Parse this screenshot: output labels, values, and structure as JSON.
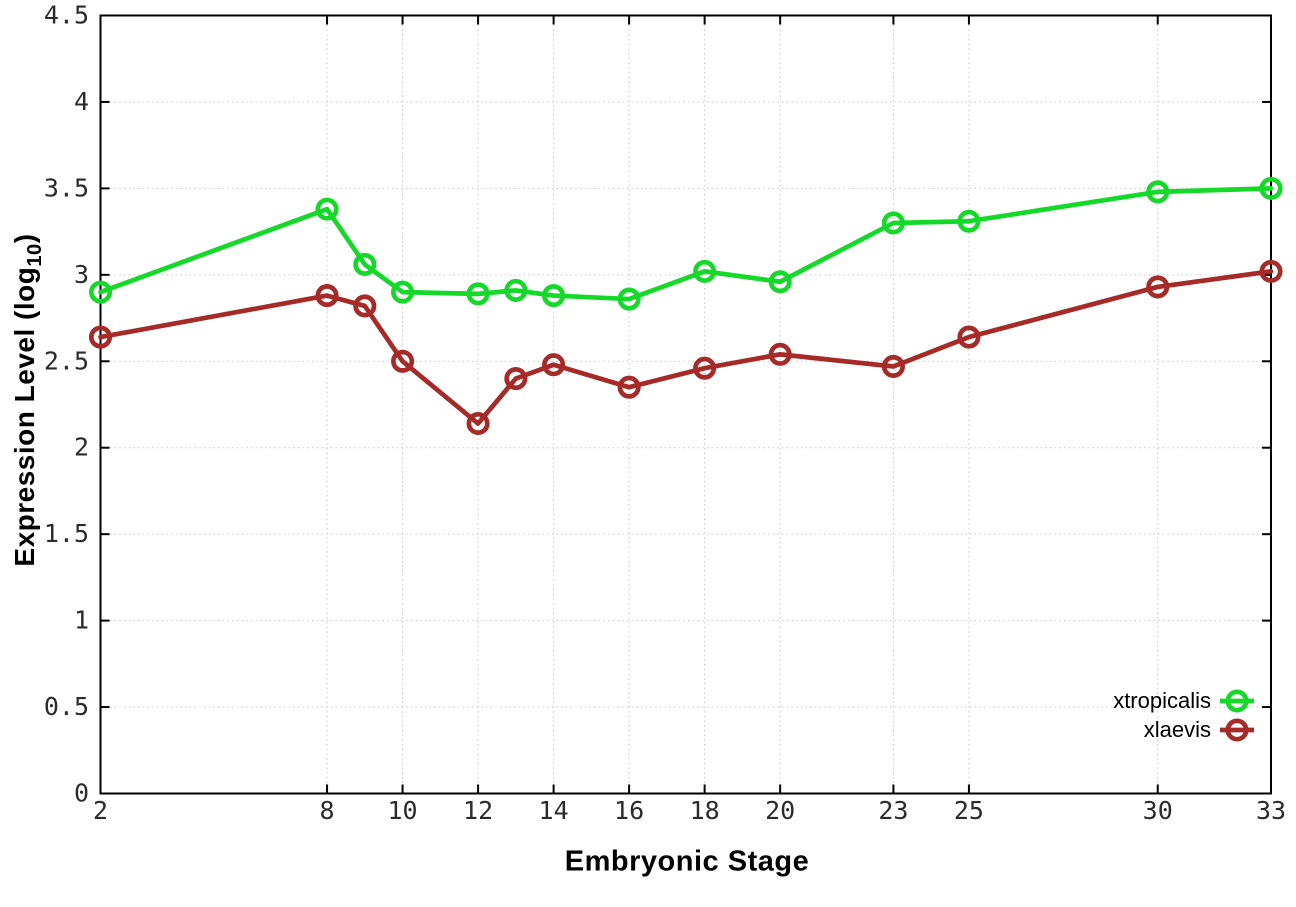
{
  "chart_data": {
    "type": "line",
    "title": "",
    "xlabel": "Embryonic Stage",
    "ylabel": "Expression Level (log10)",
    "ylabel_parts": {
      "prefix": "Expression Level (log",
      "sub": "10",
      "suffix": ")"
    },
    "xlim": [
      2,
      33
    ],
    "ylim": [
      0,
      4.5
    ],
    "xticks": [
      2,
      8,
      10,
      12,
      14,
      16,
      18,
      20,
      23,
      25,
      30,
      33
    ],
    "yticks": [
      0,
      0.5,
      1,
      1.5,
      2,
      2.5,
      3,
      3.5,
      4,
      4.5
    ],
    "ytick_labels": [
      "0",
      "0.5",
      "1",
      "1.5",
      "2",
      "2.5",
      "3",
      "3.5",
      "4",
      "4.5"
    ],
    "grid": true,
    "legend_position": "bottom-right",
    "x": [
      2,
      8,
      9,
      10,
      12,
      13,
      14,
      16,
      18,
      20,
      23,
      25,
      30,
      33
    ],
    "series": [
      {
        "name": "xtropicalis",
        "color": "#14d929",
        "values": [
          2.9,
          3.38,
          3.06,
          2.9,
          2.89,
          2.91,
          2.88,
          2.86,
          3.02,
          2.96,
          3.3,
          3.31,
          3.48,
          3.5
        ]
      },
      {
        "name": "xlaevis",
        "color": "#a52a28",
        "values": [
          2.64,
          2.88,
          2.82,
          2.5,
          2.14,
          2.4,
          2.48,
          2.35,
          2.46,
          2.54,
          2.47,
          2.64,
          2.93,
          3.02
        ]
      }
    ]
  },
  "style_colors": {
    "grid": "#c6c6c6",
    "axis": "#000000",
    "tick_text": "#2b2b2b"
  }
}
